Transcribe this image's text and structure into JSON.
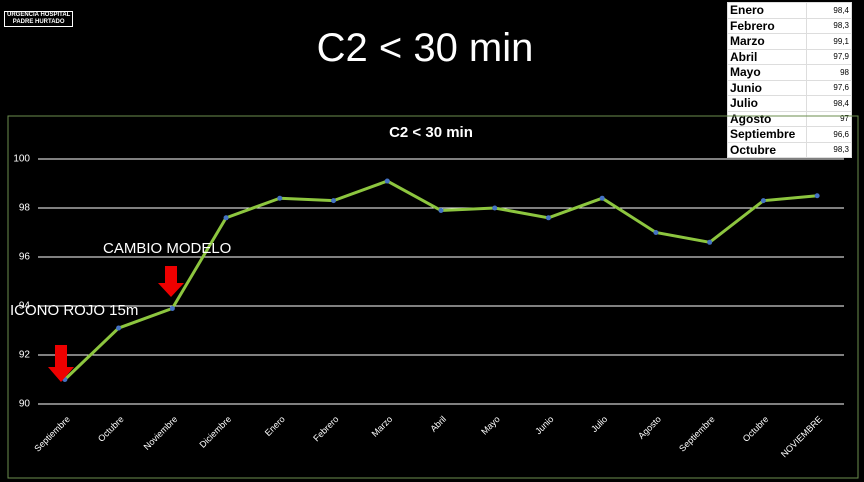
{
  "logo": {
    "lines": [
      "URGENCIA HOSPITAL",
      "PADRE HURTADO"
    ]
  },
  "slide_title": "C2 < 30 min",
  "table": {
    "rows": [
      [
        "Enero",
        "98,4"
      ],
      [
        "Febrero",
        "98,3"
      ],
      [
        "Marzo",
        "99,1"
      ],
      [
        "Abril",
        "97,9"
      ],
      [
        "Mayo",
        "98"
      ],
      [
        "Junio",
        "97,6"
      ],
      [
        "Julio",
        "98,4"
      ],
      [
        "Agosto",
        "97"
      ],
      [
        "Septiembre",
        "96,6"
      ],
      [
        "Octubre",
        "98,3"
      ]
    ]
  },
  "chart_data": {
    "type": "line",
    "title": "C2 < 30 min",
    "categories": [
      "Septiembre",
      "Octubre",
      "Noviembre",
      "Diciembre",
      "Enero",
      "Febrero",
      "Marzo",
      "Abril",
      "Mayo",
      "Junio",
      "Julio",
      "Agosto",
      "Septiembre",
      "Octubre",
      "NOVIEMBRE"
    ],
    "values": [
      91.0,
      93.1,
      93.9,
      97.6,
      98.4,
      98.3,
      99.1,
      97.9,
      98.0,
      97.6,
      98.4,
      97.0,
      96.6,
      98.3,
      98.5
    ],
    "color": "#8dc63f",
    "marker_color": "#4472c4",
    "ylim": [
      90,
      100
    ],
    "yticks": [
      90,
      92,
      94,
      96,
      98,
      100
    ],
    "grid": true,
    "annotations": [
      "CAMBIO MODELO",
      "ICONO ROJO 15m"
    ]
  }
}
